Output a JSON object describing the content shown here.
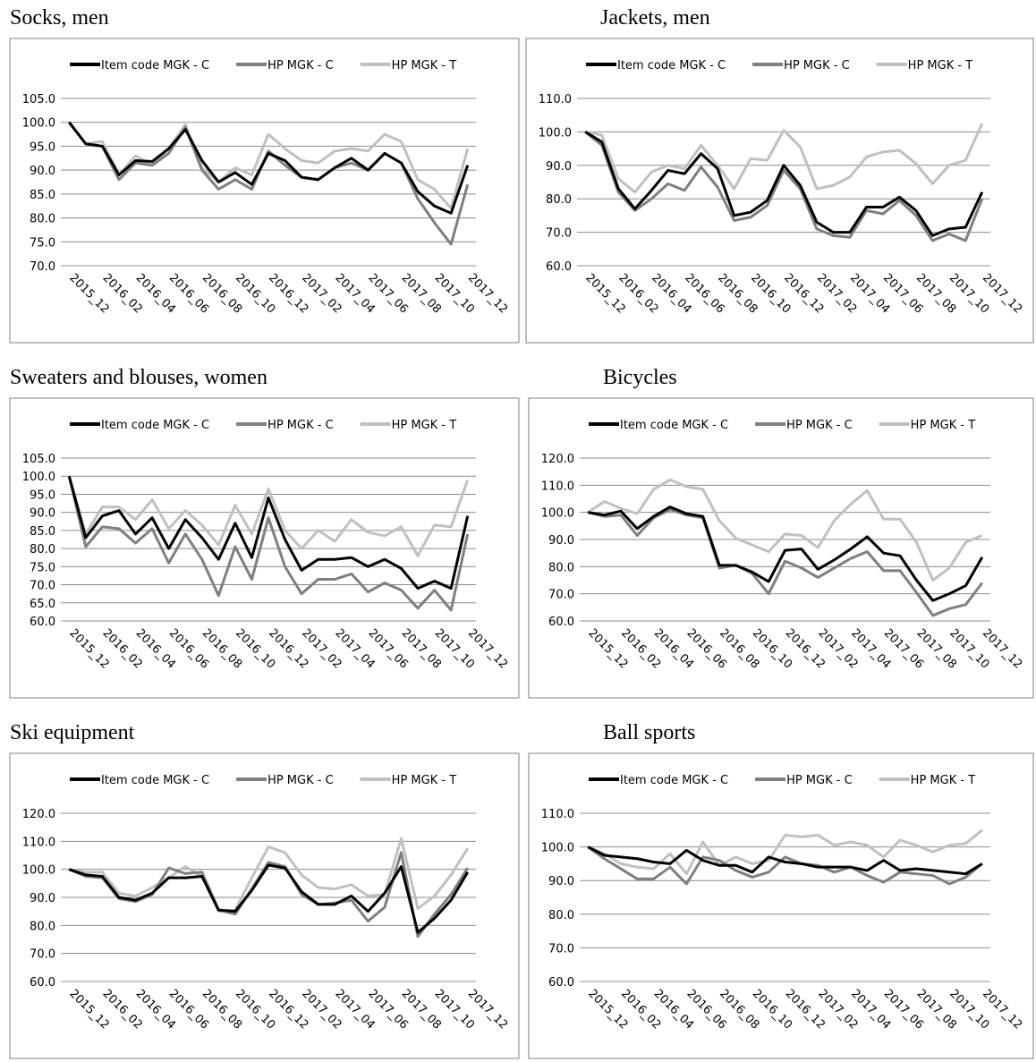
{
  "chart_data": [
    {
      "type": "line",
      "title": "Socks, men",
      "categories": [
        "2015_12",
        null,
        "2016_02",
        null,
        "2016_04",
        null,
        "2016_06",
        null,
        "2016_08",
        null,
        "2016_10",
        null,
        "2016_12",
        null,
        "2017_02",
        null,
        "2017_04",
        null,
        "2017_06",
        null,
        "2017_08",
        null,
        "2017_10",
        null,
        "2017_12"
      ],
      "series": [
        {
          "name": "Item code MGK - C",
          "color": "#000000",
          "values": [
            100,
            95.5,
            95,
            89,
            92,
            91.8,
            94.5,
            98.5,
            92,
            87.5,
            89.5,
            87,
            93.5,
            92,
            88.5,
            88,
            90.5,
            92.5,
            90,
            93.5,
            91.5,
            85.5,
            82.5,
            81,
            91
          ]
        },
        {
          "name": "HP MGK - C",
          "color": "#7f7f7f",
          "values": [
            100,
            95.5,
            95,
            88,
            91.5,
            91,
            93.5,
            99,
            90,
            86,
            88,
            86,
            94,
            91,
            88.5,
            88,
            90.5,
            91.5,
            90,
            93.5,
            91.5,
            84,
            79,
            74.5,
            87
          ]
        },
        {
          "name": "HP MGK - T",
          "color": "#c0c0c0",
          "values": [
            100,
            95.5,
            96,
            89,
            93,
            91,
            94.5,
            99.5,
            90.5,
            87.5,
            90.5,
            89,
            97.5,
            94.5,
            92,
            91.5,
            94,
            94.5,
            94,
            97.5,
            96,
            88,
            86,
            82,
            94.5
          ]
        }
      ],
      "ylim": [
        70,
        105
      ],
      "yticks": [
        {
          "value": 70,
          "label": "70.0"
        },
        {
          "value": 75,
          "label": "75.0"
        },
        {
          "value": 80,
          "label": "80.0"
        },
        {
          "value": 85,
          "label": "85.0"
        },
        {
          "value": 90,
          "label": "90.0"
        },
        {
          "value": 95,
          "label": "95.0"
        },
        {
          "value": 100,
          "label": "100.0"
        },
        {
          "value": 105,
          "label": "105.0"
        }
      ],
      "grid": true
    },
    {
      "type": "line",
      "title": "Jackets, men",
      "categories": [
        "2015_12",
        null,
        "2016_02",
        null,
        "2016_04",
        null,
        "2016_06",
        null,
        "2016_08",
        null,
        "2016_10",
        null,
        "2016_12",
        null,
        "2017_02",
        null,
        "2017_04",
        null,
        "2017_06",
        null,
        "2017_08",
        null,
        "2017_10",
        null,
        "2017_12"
      ],
      "series": [
        {
          "name": "Item code MGK - C",
          "color": "#000000",
          "values": [
            100,
            97,
            83,
            77,
            82.5,
            88.5,
            87.5,
            93.5,
            89,
            75,
            76,
            79.5,
            90,
            84,
            73,
            70,
            70,
            77.5,
            77.5,
            80.5,
            76.5,
            69,
            71,
            71.5,
            82
          ]
        },
        {
          "name": "HP MGK - C",
          "color": "#7f7f7f",
          "values": [
            100,
            96,
            82,
            76.5,
            80,
            84.5,
            82.5,
            89.5,
            83.5,
            73.5,
            74.5,
            78,
            88.5,
            83,
            71,
            69,
            68.5,
            76.5,
            75.5,
            79.5,
            75,
            67.5,
            69.5,
            67.5,
            80
          ]
        },
        {
          "name": "HP MGK - T",
          "color": "#c0c0c0",
          "values": [
            100,
            99,
            86,
            82,
            88,
            90,
            89,
            96,
            90,
            83,
            92,
            91.5,
            100.5,
            95.5,
            83,
            84,
            86.5,
            92.5,
            94,
            94.5,
            90.5,
            84.5,
            90,
            91.5,
            102.5
          ]
        }
      ],
      "ylim": [
        60,
        110
      ],
      "yticks": [
        {
          "value": 60,
          "label": "60.0"
        },
        {
          "value": 70,
          "label": "70.0"
        },
        {
          "value": 80,
          "label": "80.0"
        },
        {
          "value": 90,
          "label": "90.0"
        },
        {
          "value": 100,
          "label": "100.0"
        },
        {
          "value": 110,
          "label": "110.0"
        }
      ],
      "grid": true
    },
    {
      "type": "line",
      "title": "Sweaters and blouses, women",
      "categories": [
        "2015_12",
        null,
        "2016_02",
        null,
        "2016_04",
        null,
        "2016_06",
        null,
        "2016_08",
        null,
        "2016_10",
        null,
        "2016_12",
        null,
        "2017_02",
        null,
        "2017_04",
        null,
        "2017_06",
        null,
        "2017_08",
        null,
        "2017_10",
        null,
        "2017_12"
      ],
      "series": [
        {
          "name": "Item code MGK - C",
          "color": "#000000",
          "values": [
            100,
            83,
            89,
            90.5,
            84,
            88.5,
            80,
            88,
            83,
            77,
            87,
            77.5,
            94,
            82.5,
            74,
            77,
            77,
            77.5,
            75,
            77,
            74.5,
            69,
            71,
            69,
            89
          ]
        },
        {
          "name": "HP MGK - C",
          "color": "#7f7f7f",
          "values": [
            100,
            80.5,
            86,
            85.5,
            81.5,
            85.5,
            76,
            84,
            77,
            67,
            80.5,
            71.5,
            88.5,
            75,
            67.5,
            71.5,
            71.5,
            73,
            68,
            70.5,
            68.5,
            63.5,
            68.5,
            63,
            84
          ]
        },
        {
          "name": "HP MGK - T",
          "color": "#c0c0c0",
          "values": [
            100,
            84,
            91.5,
            91.5,
            88,
            93.5,
            85.5,
            90.5,
            86.5,
            81,
            92,
            84,
            96.5,
            85,
            80,
            85,
            82,
            88,
            84.5,
            83.5,
            86,
            78,
            86.5,
            86,
            99
          ]
        }
      ],
      "ylim": [
        60,
        105
      ],
      "yticks": [
        {
          "value": 60,
          "label": "60.0"
        },
        {
          "value": 65,
          "label": "65.0"
        },
        {
          "value": 70,
          "label": "70.0"
        },
        {
          "value": 75,
          "label": "75.0"
        },
        {
          "value": 80,
          "label": "80.0"
        },
        {
          "value": 85,
          "label": "85.0"
        },
        {
          "value": 90,
          "label": "90.0"
        },
        {
          "value": 95,
          "label": "95.0"
        },
        {
          "value": 100,
          "label": "100.0"
        },
        {
          "value": 105,
          "label": "105.0"
        }
      ],
      "grid": true
    },
    {
      "type": "line",
      "title": "Bicycles",
      "categories": [
        "2015_12",
        null,
        "2016_02",
        null,
        "2016_04",
        null,
        "2016_06",
        null,
        "2016_08",
        null,
        "2016_10",
        null,
        "2016_12",
        null,
        "2017_02",
        null,
        "2017_04",
        null,
        "2017_06",
        null,
        "2017_08",
        null,
        "2017_10",
        null,
        "2017_12"
      ],
      "series": [
        {
          "name": "Item code MGK - C",
          "color": "#000000",
          "values": [
            100,
            99,
            100.5,
            94,
            98.5,
            102,
            99.5,
            98.5,
            80.5,
            80.5,
            78,
            74.5,
            86,
            86.5,
            79,
            82.5,
            86.5,
            91,
            85,
            84,
            75,
            67.5,
            70,
            73,
            83.5
          ]
        },
        {
          "name": "HP MGK - C",
          "color": "#7f7f7f",
          "values": [
            100,
            98.5,
            99,
            91.5,
            98,
            101,
            99,
            98,
            79.5,
            80.5,
            77.5,
            70,
            82,
            79.5,
            76,
            79.5,
            83,
            85.5,
            78.5,
            78.5,
            70.5,
            62,
            64.5,
            66,
            74
          ]
        },
        {
          "name": "HP MGK - T",
          "color": "#c0c0c0",
          "values": [
            100,
            104,
            101.5,
            99.5,
            108.5,
            112,
            109.5,
            108.5,
            97,
            90.5,
            88,
            85.5,
            92,
            91.5,
            87,
            97,
            103,
            108,
            97.5,
            97.5,
            89,
            75,
            79.5,
            89,
            91.5
          ]
        }
      ],
      "ylim": [
        60,
        120
      ],
      "yticks": [
        {
          "value": 60,
          "label": "60.0"
        },
        {
          "value": 70,
          "label": "70.0"
        },
        {
          "value": 80,
          "label": "80.0"
        },
        {
          "value": 90,
          "label": "90.0"
        },
        {
          "value": 100,
          "label": "100.0"
        },
        {
          "value": 110,
          "label": "110.0"
        },
        {
          "value": 120,
          "label": "120.0"
        }
      ],
      "grid": true
    },
    {
      "type": "line",
      "title": "Ski equipment",
      "categories": [
        "2015_12",
        null,
        "2016_02",
        null,
        "2016_04",
        null,
        "2016_06",
        null,
        "2016_08",
        null,
        "2016_10",
        null,
        "2016_12",
        null,
        "2017_02",
        null,
        "2017_04",
        null,
        "2017_06",
        null,
        "2017_08",
        null,
        "2017_10",
        null,
        "2017_12"
      ],
      "series": [
        {
          "name": "Item code MGK - C",
          "color": "#000000",
          "values": [
            100,
            98,
            97.5,
            90,
            89,
            91.5,
            97,
            97,
            97.5,
            85.5,
            85,
            92.5,
            101.5,
            100.5,
            92,
            87.5,
            87.5,
            90.5,
            85,
            91.5,
            101,
            77.5,
            82.5,
            89,
            99
          ]
        },
        {
          "name": "HP MGK - C",
          "color": "#7f7f7f",
          "values": [
            100,
            97.5,
            97,
            89.5,
            88.5,
            91,
            100.5,
            98.5,
            99,
            85.5,
            84,
            93,
            102.5,
            101,
            91,
            87.5,
            88,
            89,
            81.5,
            86.5,
            106,
            76,
            84,
            91,
            100.5
          ]
        },
        {
          "name": "HP MGK - T",
          "color": "#c0c0c0",
          "values": [
            100,
            99,
            99,
            91.5,
            90.5,
            93.5,
            97,
            101,
            97.5,
            85,
            85.5,
            97,
            108,
            106,
            98,
            93.5,
            93,
            94.5,
            90.5,
            91,
            111,
            86,
            90.5,
            98,
            107.5
          ]
        }
      ],
      "ylim": [
        60,
        120
      ],
      "yticks": [
        {
          "value": 60,
          "label": "60.0"
        },
        {
          "value": 70,
          "label": "70.0"
        },
        {
          "value": 80,
          "label": "80.0"
        },
        {
          "value": 90,
          "label": "90.0"
        },
        {
          "value": 100,
          "label": "100.0"
        },
        {
          "value": 110,
          "label": "110.0"
        },
        {
          "value": 120,
          "label": "120.0"
        }
      ],
      "grid": true
    },
    {
      "type": "line",
      "title": "Ball sports",
      "categories": [
        "2015_12",
        null,
        "2016_02",
        null,
        "2016_04",
        null,
        "2016_06",
        null,
        "2016_08",
        null,
        "2016_10",
        null,
        "2016_12",
        null,
        "2017_02",
        null,
        "2017_04",
        null,
        "2017_06",
        null,
        "2017_08",
        null,
        "2017_10",
        null,
        "2017_12"
      ],
      "series": [
        {
          "name": "Item code MGK - C",
          "color": "#000000",
          "values": [
            100,
            97.5,
            97,
            96.5,
            95.5,
            95,
            99,
            96,
            94.5,
            94.5,
            92.5,
            97,
            95.5,
            95,
            94,
            94,
            94,
            93,
            96,
            93,
            93.5,
            93,
            92.5,
            92,
            95
          ]
        },
        {
          "name": "HP MGK - C",
          "color": "#7f7f7f",
          "values": [
            100,
            96.5,
            93.5,
            90.5,
            90.5,
            94,
            89,
            97,
            96,
            93,
            91,
            92.5,
            97,
            95,
            94.5,
            92.5,
            94,
            91.5,
            89.5,
            92.5,
            92,
            91.5,
            89,
            91,
            95
          ]
        },
        {
          "name": "HP MGK - T",
          "color": "#c0c0c0",
          "values": [
            100,
            98,
            95,
            94,
            93.5,
            98,
            92,
            101.5,
            94.5,
            97,
            95,
            96,
            103.5,
            103,
            103.5,
            100.5,
            101.5,
            100.5,
            97,
            102,
            100.5,
            98.5,
            100.5,
            101,
            105
          ]
        }
      ],
      "ylim": [
        60,
        110
      ],
      "yticks": [
        {
          "value": 60,
          "label": "60.0"
        },
        {
          "value": 70,
          "label": "70.0"
        },
        {
          "value": 80,
          "label": "80.0"
        },
        {
          "value": 90,
          "label": "90.0"
        },
        {
          "value": 100,
          "label": "100.0"
        },
        {
          "value": 110,
          "label": "110.0"
        }
      ],
      "grid": true
    }
  ]
}
